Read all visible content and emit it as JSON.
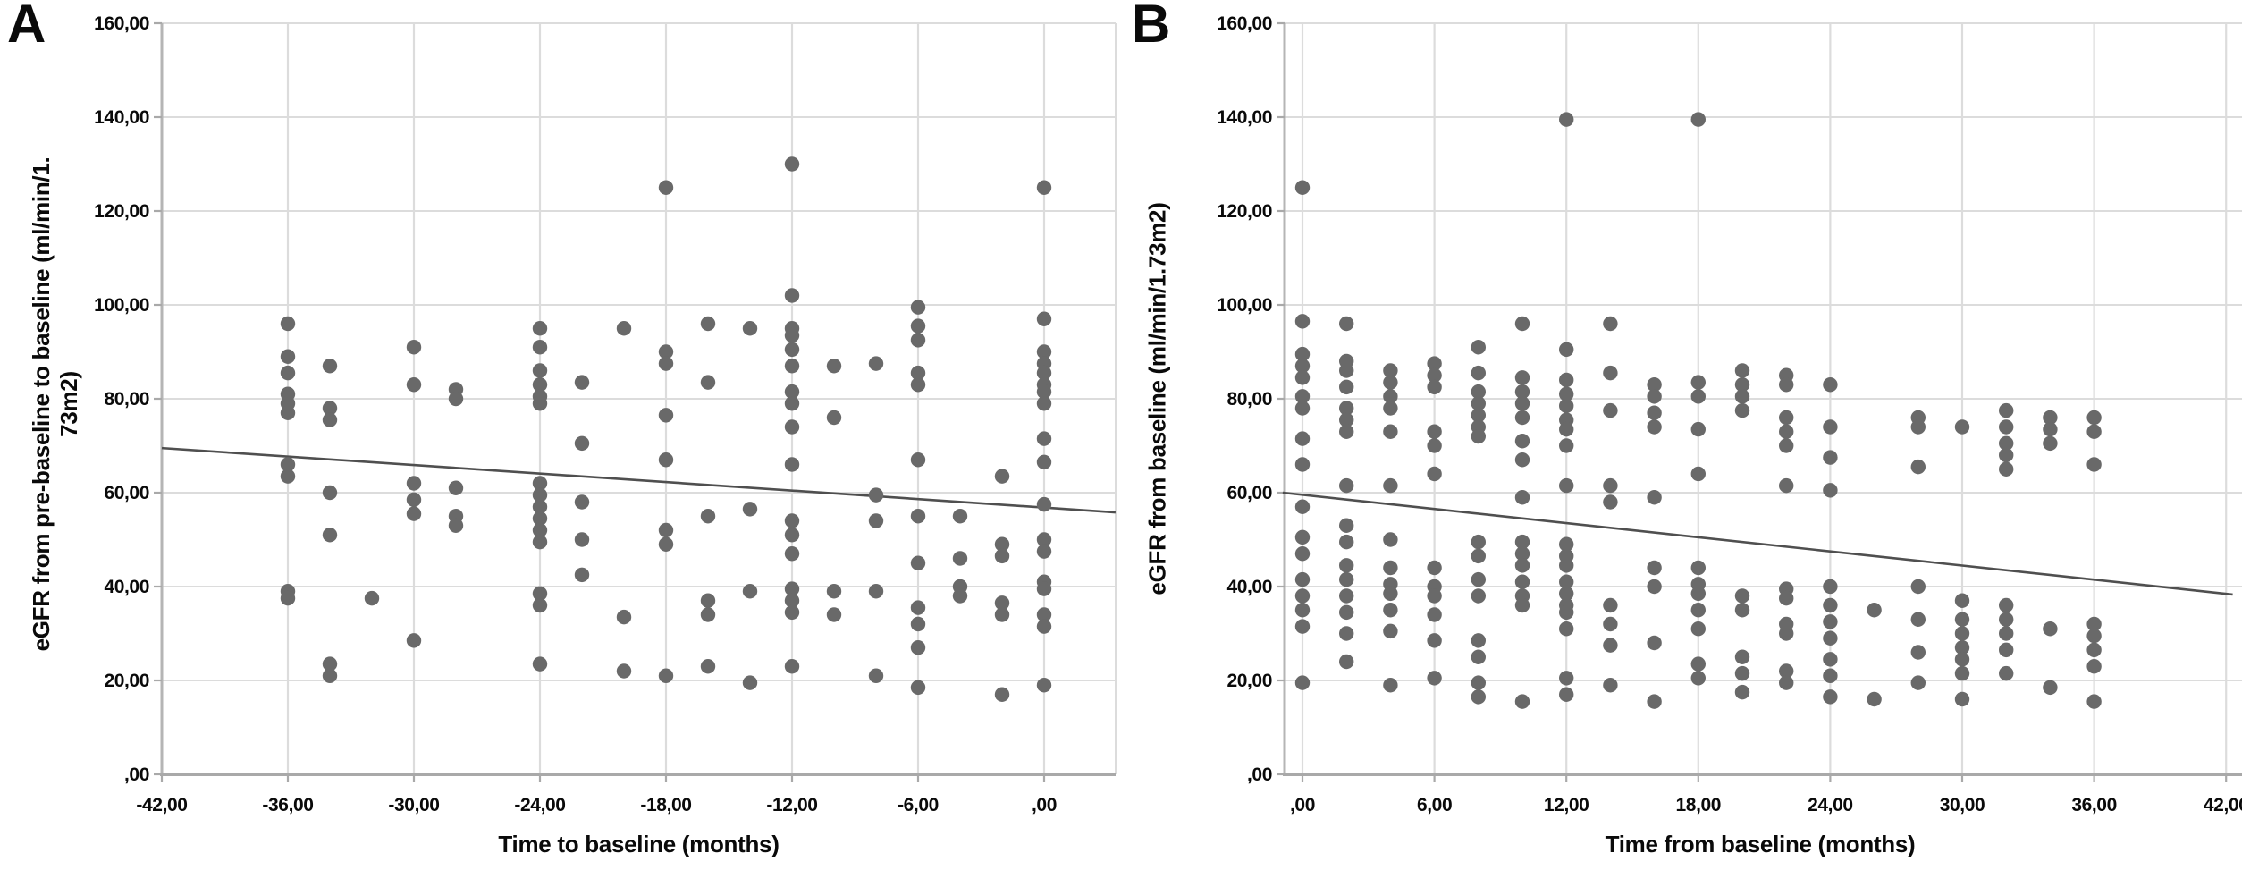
{
  "figure": {
    "background_color": "#ffffff",
    "text_color": "#0a0a0a",
    "point_color": "#696969",
    "trend_line_color": "#4f4f4f",
    "gridline_color": "#dcdcdc",
    "axis_color": "#a9a9a9"
  },
  "chart_data": [
    {
      "type": "scatter",
      "panel_label": "A",
      "xlabel": "Time to baseline (months)",
      "ylabel": "eGFR from pre-baseline to baseline (ml/min/1.73m2)",
      "ylabel_wrap": [
        "eGFR from pre-baseline to baseline (ml/min/1.",
        "73m2)"
      ],
      "xlim": [
        -42,
        3.4
      ],
      "ylim": [
        0,
        160
      ],
      "grid": true,
      "decimal_style": "comma",
      "xtick_values": [
        -42,
        -36,
        -30,
        -24,
        -18,
        -12,
        -6,
        0
      ],
      "xtick_labels": [
        "-42,00",
        "-36,00",
        "-30,00",
        "-24,00",
        "-18,00",
        "-12,00",
        "-6,00",
        ",00"
      ],
      "ytick_values": [
        0,
        20,
        40,
        60,
        80,
        100,
        120,
        140,
        160
      ],
      "ytick_labels": [
        ",00",
        "20,00",
        "40,00",
        "60,00",
        "80,00",
        "100,00",
        "120,00",
        "140,00",
        "160,00"
      ],
      "trend_line": {
        "from": [
          -42,
          69.5
        ],
        "to": [
          3.4,
          55.8
        ]
      },
      "points": [
        [
          -36,
          96
        ],
        [
          -36,
          89
        ],
        [
          -36,
          85.5
        ],
        [
          -36,
          81
        ],
        [
          -36,
          79
        ],
        [
          -36,
          77
        ],
        [
          -36,
          66
        ],
        [
          -36,
          63.5
        ],
        [
          -36,
          39
        ],
        [
          -36,
          37.5
        ],
        [
          -34,
          87
        ],
        [
          -34,
          78
        ],
        [
          -34,
          75.5
        ],
        [
          -34,
          60
        ],
        [
          -34,
          51
        ],
        [
          -34,
          23.5
        ],
        [
          -34,
          21
        ],
        [
          -32,
          37.5
        ],
        [
          -30,
          91
        ],
        [
          -30,
          83
        ],
        [
          -30,
          62
        ],
        [
          -30,
          58.5
        ],
        [
          -30,
          55.5
        ],
        [
          -30,
          28.5
        ],
        [
          -28,
          82
        ],
        [
          -28,
          80
        ],
        [
          -28,
          61
        ],
        [
          -28,
          55
        ],
        [
          -28,
          53
        ],
        [
          -24,
          95
        ],
        [
          -24,
          91
        ],
        [
          -24,
          86
        ],
        [
          -24,
          83
        ],
        [
          -24,
          80.5
        ],
        [
          -24,
          79
        ],
        [
          -24,
          62
        ],
        [
          -24,
          59.5
        ],
        [
          -24,
          57
        ],
        [
          -24,
          54.5
        ],
        [
          -24,
          52
        ],
        [
          -24,
          49.5
        ],
        [
          -24,
          38.5
        ],
        [
          -24,
          36
        ],
        [
          -24,
          23.5
        ],
        [
          -22,
          83.5
        ],
        [
          -22,
          70.5
        ],
        [
          -22,
          58
        ],
        [
          -22,
          50
        ],
        [
          -22,
          42.5
        ],
        [
          -20,
          95
        ],
        [
          -20,
          33.5
        ],
        [
          -20,
          22
        ],
        [
          -18,
          125
        ],
        [
          -18,
          90
        ],
        [
          -18,
          87.5
        ],
        [
          -18,
          76.5
        ],
        [
          -18,
          67
        ],
        [
          -18,
          52
        ],
        [
          -18,
          49
        ],
        [
          -18,
          21
        ],
        [
          -16,
          96
        ],
        [
          -16,
          83.5
        ],
        [
          -16,
          55
        ],
        [
          -16,
          37
        ],
        [
          -16,
          34
        ],
        [
          -16,
          23
        ],
        [
          -14,
          95
        ],
        [
          -14,
          56.5
        ],
        [
          -14,
          39
        ],
        [
          -14,
          19.5
        ],
        [
          -12,
          130
        ],
        [
          -12,
          102
        ],
        [
          -12,
          95
        ],
        [
          -12,
          93.5
        ],
        [
          -12,
          90.5
        ],
        [
          -12,
          87
        ],
        [
          -12,
          81.5
        ],
        [
          -12,
          79
        ],
        [
          -12,
          74
        ],
        [
          -12,
          66
        ],
        [
          -12,
          54
        ],
        [
          -12,
          51
        ],
        [
          -12,
          47
        ],
        [
          -12,
          39.5
        ],
        [
          -12,
          37
        ],
        [
          -12,
          34.5
        ],
        [
          -12,
          23
        ],
        [
          -10,
          87
        ],
        [
          -10,
          76
        ],
        [
          -10,
          39
        ],
        [
          -10,
          34
        ],
        [
          -8,
          87.5
        ],
        [
          -8,
          59.5
        ],
        [
          -8,
          54
        ],
        [
          -8,
          39
        ],
        [
          -8,
          21
        ],
        [
          -6,
          99.5
        ],
        [
          -6,
          95.5
        ],
        [
          -6,
          92.5
        ],
        [
          -6,
          85.5
        ],
        [
          -6,
          83
        ],
        [
          -6,
          67
        ],
        [
          -6,
          55
        ],
        [
          -6,
          45
        ],
        [
          -6,
          35.5
        ],
        [
          -6,
          32
        ],
        [
          -6,
          27
        ],
        [
          -6,
          18.5
        ],
        [
          -4,
          55
        ],
        [
          -4,
          46
        ],
        [
          -4,
          40
        ],
        [
          -4,
          38
        ],
        [
          -2,
          63.5
        ],
        [
          -2,
          49
        ],
        [
          -2,
          46.5
        ],
        [
          -2,
          36.5
        ],
        [
          -2,
          34
        ],
        [
          -2,
          17
        ],
        [
          0,
          125
        ],
        [
          0,
          97
        ],
        [
          0,
          90
        ],
        [
          0,
          87.5
        ],
        [
          0,
          85.5
        ],
        [
          0,
          83
        ],
        [
          0,
          81.5
        ],
        [
          0,
          79
        ],
        [
          0,
          71.5
        ],
        [
          0,
          66.5
        ],
        [
          0,
          57.5
        ],
        [
          0,
          50
        ],
        [
          0,
          47.5
        ],
        [
          0,
          41
        ],
        [
          0,
          39.5
        ],
        [
          0,
          34
        ],
        [
          0,
          31.5
        ],
        [
          0,
          19
        ]
      ]
    },
    {
      "type": "scatter",
      "panel_label": "B",
      "xlabel": "Time from baseline (months)",
      "ylabel": "eGFR from baseline (ml/min/1.73m2)",
      "ylabel_wrap": [
        "eGFR from baseline (ml/min/1.73m2)"
      ],
      "xlim": [
        -0.8,
        42.7
      ],
      "ylim": [
        0,
        160
      ],
      "grid": true,
      "decimal_style": "comma",
      "xtick_values": [
        0,
        6,
        12,
        18,
        24,
        30,
        36,
        42
      ],
      "xtick_labels": [
        ",00",
        "6,00",
        "12,00",
        "18,00",
        "24,00",
        "30,00",
        "36,00",
        "42,00"
      ],
      "ytick_values": [
        0,
        20,
        40,
        60,
        80,
        100,
        120,
        140,
        160
      ],
      "ytick_labels": [
        ",00",
        "20,00",
        "40,00",
        "60,00",
        "80,00",
        "100,00",
        "120,00",
        "140,00",
        "160,00"
      ],
      "trend_line": {
        "from": [
          -0.9,
          60.0
        ],
        "to": [
          42.3,
          38.3
        ]
      },
      "points": [
        [
          0,
          125
        ],
        [
          0,
          96.5
        ],
        [
          0,
          89.5
        ],
        [
          0,
          87
        ],
        [
          0,
          84.5
        ],
        [
          0,
          80.5
        ],
        [
          0,
          78
        ],
        [
          0,
          71.5
        ],
        [
          0,
          66
        ],
        [
          0,
          57
        ],
        [
          0,
          50.5
        ],
        [
          0,
          47
        ],
        [
          0,
          41.5
        ],
        [
          0,
          38
        ],
        [
          0,
          35
        ],
        [
          0,
          31.5
        ],
        [
          0,
          19.5
        ],
        [
          2,
          96
        ],
        [
          2,
          88
        ],
        [
          2,
          86
        ],
        [
          2,
          82.5
        ],
        [
          2,
          78
        ],
        [
          2,
          75.5
        ],
        [
          2,
          73
        ],
        [
          2,
          61.5
        ],
        [
          2,
          53
        ],
        [
          2,
          49.5
        ],
        [
          2,
          44.5
        ],
        [
          2,
          41.5
        ],
        [
          2,
          38
        ],
        [
          2,
          34.5
        ],
        [
          2,
          30
        ],
        [
          2,
          24
        ],
        [
          4,
          86
        ],
        [
          4,
          83.5
        ],
        [
          4,
          80.5
        ],
        [
          4,
          78
        ],
        [
          4,
          73
        ],
        [
          4,
          61.5
        ],
        [
          4,
          50
        ],
        [
          4,
          44
        ],
        [
          4,
          40.5
        ],
        [
          4,
          38.5
        ],
        [
          4,
          35
        ],
        [
          4,
          30.5
        ],
        [
          4,
          19
        ],
        [
          6,
          87.5
        ],
        [
          6,
          85
        ],
        [
          6,
          82.5
        ],
        [
          6,
          73
        ],
        [
          6,
          70
        ],
        [
          6,
          64
        ],
        [
          6,
          44
        ],
        [
          6,
          40
        ],
        [
          6,
          38
        ],
        [
          6,
          34
        ],
        [
          6,
          28.5
        ],
        [
          6,
          20.5
        ],
        [
          8,
          91
        ],
        [
          8,
          85.5
        ],
        [
          8,
          81.5
        ],
        [
          8,
          79
        ],
        [
          8,
          76.5
        ],
        [
          8,
          74
        ],
        [
          8,
          72
        ],
        [
          8,
          49.5
        ],
        [
          8,
          46.5
        ],
        [
          8,
          41.5
        ],
        [
          8,
          38
        ],
        [
          8,
          28.5
        ],
        [
          8,
          25
        ],
        [
          8,
          19.5
        ],
        [
          8,
          16.5
        ],
        [
          10,
          96
        ],
        [
          10,
          84.5
        ],
        [
          10,
          81.5
        ],
        [
          10,
          79
        ],
        [
          10,
          76
        ],
        [
          10,
          71
        ],
        [
          10,
          67
        ],
        [
          10,
          59
        ],
        [
          10,
          49.5
        ],
        [
          10,
          47
        ],
        [
          10,
          44.5
        ],
        [
          10,
          41
        ],
        [
          10,
          38
        ],
        [
          10,
          36
        ],
        [
          10,
          15.5
        ],
        [
          12,
          139.5
        ],
        [
          12,
          90.5
        ],
        [
          12,
          84
        ],
        [
          12,
          81
        ],
        [
          12,
          78.5
        ],
        [
          12,
          75.5
        ],
        [
          12,
          73.5
        ],
        [
          12,
          70
        ],
        [
          12,
          61.5
        ],
        [
          12,
          49
        ],
        [
          12,
          46.5
        ],
        [
          12,
          44.5
        ],
        [
          12,
          41
        ],
        [
          12,
          38.5
        ],
        [
          12,
          36
        ],
        [
          12,
          34.5
        ],
        [
          12,
          31
        ],
        [
          12,
          20.5
        ],
        [
          12,
          17
        ],
        [
          14,
          96
        ],
        [
          14,
          85.5
        ],
        [
          14,
          77.5
        ],
        [
          14,
          61.5
        ],
        [
          14,
          58
        ],
        [
          14,
          36
        ],
        [
          14,
          32
        ],
        [
          14,
          27.5
        ],
        [
          14,
          19
        ],
        [
          16,
          83
        ],
        [
          16,
          80.5
        ],
        [
          16,
          77
        ],
        [
          16,
          74
        ],
        [
          16,
          59
        ],
        [
          16,
          44
        ],
        [
          16,
          40
        ],
        [
          16,
          28
        ],
        [
          16,
          15.5
        ],
        [
          18,
          139.5
        ],
        [
          18,
          83.5
        ],
        [
          18,
          80.5
        ],
        [
          18,
          73.5
        ],
        [
          18,
          64
        ],
        [
          18,
          44
        ],
        [
          18,
          40.5
        ],
        [
          18,
          38.5
        ],
        [
          18,
          35
        ],
        [
          18,
          31
        ],
        [
          18,
          23.5
        ],
        [
          18,
          20.5
        ],
        [
          20,
          86
        ],
        [
          20,
          83
        ],
        [
          20,
          80.5
        ],
        [
          20,
          77.5
        ],
        [
          20,
          38
        ],
        [
          20,
          35
        ],
        [
          20,
          25
        ],
        [
          20,
          21.5
        ],
        [
          20,
          17.5
        ],
        [
          22,
          85
        ],
        [
          22,
          83
        ],
        [
          22,
          76
        ],
        [
          22,
          73
        ],
        [
          22,
          70
        ],
        [
          22,
          61.5
        ],
        [
          22,
          39.5
        ],
        [
          22,
          37.5
        ],
        [
          22,
          32
        ],
        [
          22,
          30
        ],
        [
          22,
          22
        ],
        [
          22,
          19.5
        ],
        [
          24,
          83
        ],
        [
          24,
          74
        ],
        [
          24,
          67.5
        ],
        [
          24,
          60.5
        ],
        [
          24,
          40
        ],
        [
          24,
          36
        ],
        [
          24,
          32.5
        ],
        [
          24,
          29
        ],
        [
          24,
          24.5
        ],
        [
          24,
          21
        ],
        [
          24,
          16.5
        ],
        [
          26,
          35
        ],
        [
          26,
          16
        ],
        [
          28,
          76
        ],
        [
          28,
          74
        ],
        [
          28,
          65.5
        ],
        [
          28,
          40
        ],
        [
          28,
          33
        ],
        [
          28,
          26
        ],
        [
          28,
          19.5
        ],
        [
          30,
          74
        ],
        [
          30,
          37
        ],
        [
          30,
          33
        ],
        [
          30,
          30
        ],
        [
          30,
          27
        ],
        [
          30,
          24.5
        ],
        [
          30,
          21.5
        ],
        [
          30,
          16
        ],
        [
          32,
          77.5
        ],
        [
          32,
          74
        ],
        [
          32,
          70.5
        ],
        [
          32,
          68
        ],
        [
          32,
          65
        ],
        [
          32,
          36
        ],
        [
          32,
          33
        ],
        [
          32,
          30
        ],
        [
          32,
          26.5
        ],
        [
          32,
          21.5
        ],
        [
          34,
          76
        ],
        [
          34,
          73.5
        ],
        [
          34,
          70.5
        ],
        [
          34,
          31
        ],
        [
          34,
          18.5
        ],
        [
          36,
          76
        ],
        [
          36,
          73
        ],
        [
          36,
          66
        ],
        [
          36,
          32
        ],
        [
          36,
          29.5
        ],
        [
          36,
          26.5
        ],
        [
          36,
          23
        ],
        [
          36,
          15.5
        ]
      ]
    }
  ]
}
